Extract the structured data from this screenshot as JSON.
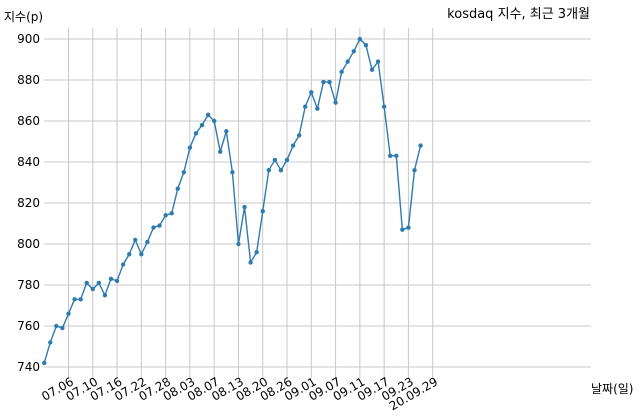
{
  "chart_data": {
    "type": "line",
    "title": "kosdaq 지수, 최근 3개월",
    "xlabel": "날짜(일)",
    "ylabel": "지수(p)",
    "ylim": [
      735,
      905
    ],
    "yticks": [
      740,
      760,
      780,
      800,
      820,
      840,
      860,
      880,
      900
    ],
    "xticks": [
      "07.06",
      "07.10",
      "07.16",
      "07.22",
      "07.28",
      "08.03",
      "08.07",
      "08.13",
      "08.20",
      "08.26",
      "09.01",
      "09.07",
      "09.11",
      "09.17",
      "09.23",
      "20.09.29"
    ],
    "xtick_index": [
      4,
      8,
      12,
      16,
      20,
      24,
      28,
      32,
      36,
      40,
      44,
      48,
      52,
      56,
      60,
      64
    ],
    "grid": true,
    "line_color": "#2e7bb0",
    "series": [
      {
        "values": [
          742,
          752,
          760,
          759,
          766,
          773,
          773,
          781,
          778,
          781,
          775,
          783,
          782,
          790,
          795,
          802,
          795,
          801,
          808,
          809,
          814,
          815,
          827,
          835,
          847,
          854,
          858,
          863,
          860,
          845,
          855,
          835,
          800,
          818,
          791,
          796,
          816,
          836,
          841,
          836,
          841,
          848,
          853,
          867,
          874,
          866,
          879,
          879,
          869,
          884,
          889,
          894,
          900,
          897,
          885,
          889,
          867,
          843,
          843,
          807,
          808,
          836,
          848
        ]
      }
    ]
  }
}
